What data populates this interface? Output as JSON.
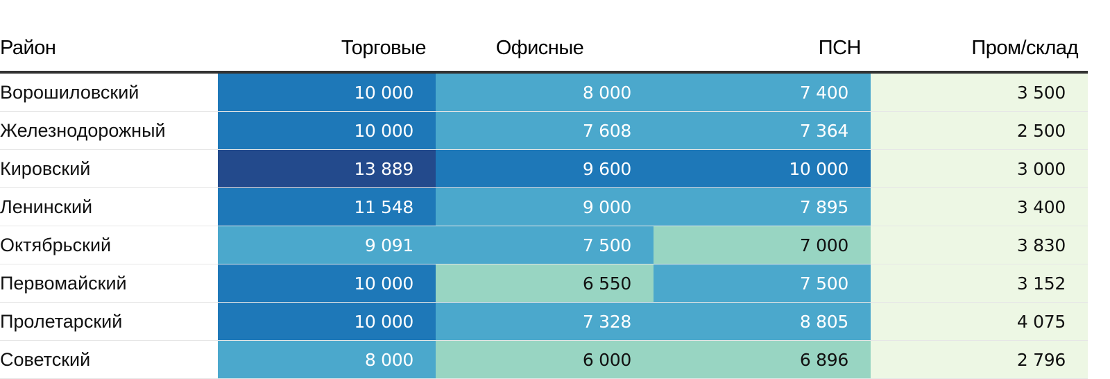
{
  "chart_data": {
    "type": "table",
    "columns": [
      "Район",
      "Торговые",
      "Офисные",
      "ПСН",
      "Пром/склад"
    ],
    "rows": [
      {
        "name": "Ворошиловский",
        "values": [
          "10 000",
          "8 000",
          "7 400",
          "3 500"
        ],
        "levels": [
          3,
          2,
          2,
          0
        ]
      },
      {
        "name": "Железнодорожный",
        "values": [
          "10 000",
          "7 608",
          "7 364",
          "2 500"
        ],
        "levels": [
          3,
          2,
          2,
          0
        ]
      },
      {
        "name": "Кировский",
        "values": [
          "13 889",
          "9 600",
          "10 000",
          "3 000"
        ],
        "levels": [
          4,
          3,
          3,
          0
        ]
      },
      {
        "name": "Ленинский",
        "values": [
          "11 548",
          "9 000",
          "7 895",
          "3 400"
        ],
        "levels": [
          3,
          2,
          2,
          0
        ]
      },
      {
        "name": "Октябрьский",
        "values": [
          "9 091",
          "7 500",
          "7 000",
          "3 830"
        ],
        "levels": [
          2,
          2,
          1,
          0
        ]
      },
      {
        "name": "Первомайский",
        "values": [
          "10 000",
          "6 550",
          "7 500",
          "3 152"
        ],
        "levels": [
          3,
          1,
          2,
          0
        ]
      },
      {
        "name": "Пролетарский",
        "values": [
          "10 000",
          "7 328",
          "8 805",
          "4 075"
        ],
        "levels": [
          3,
          2,
          2,
          0
        ]
      },
      {
        "name": "Советский",
        "values": [
          "8 000",
          "6 000",
          "6 896",
          "2 796"
        ],
        "levels": [
          2,
          1,
          1,
          0
        ]
      }
    ],
    "palette": [
      "#edf7e4",
      "#98d5c2",
      "#4ba8cc",
      "#1e78b8",
      "#234a8c"
    ],
    "text_colors": [
      "#111111",
      "#111111",
      "#ffffff",
      "#ffffff",
      "#ffffff"
    ]
  }
}
